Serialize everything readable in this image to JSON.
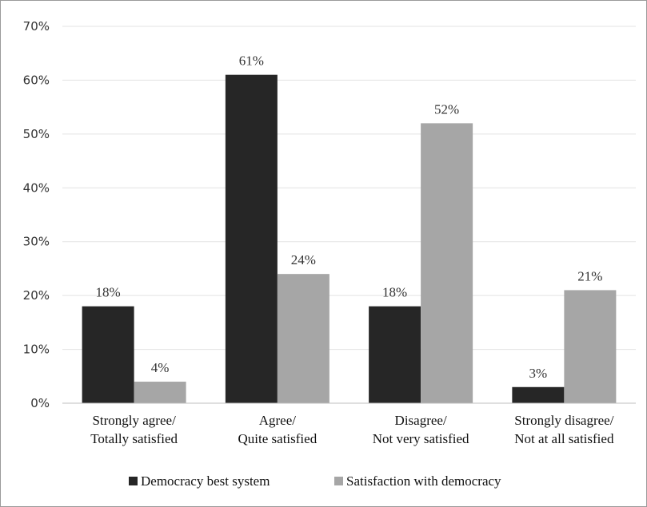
{
  "chart_data": {
    "type": "bar",
    "categories": [
      [
        "Strongly agree/",
        "Totally satisfied"
      ],
      [
        "Agree/",
        "Quite satisfied"
      ],
      [
        "Disagree/",
        "Not very satisfied"
      ],
      [
        "Strongly disagree/",
        "Not at all satisfied"
      ]
    ],
    "series": [
      {
        "name": "Democracy best system",
        "values": [
          18,
          61,
          18,
          3
        ],
        "labels": [
          "18%",
          "61%",
          "18%",
          "3%"
        ],
        "color": "#262626"
      },
      {
        "name": "Satisfaction with democracy",
        "values": [
          4,
          24,
          52,
          21
        ],
        "labels": [
          "4%",
          "24%",
          "52%",
          "21%"
        ],
        "color": "#a6a6a6"
      }
    ],
    "yticks": [
      "0%",
      "10%",
      "20%",
      "30%",
      "40%",
      "50%",
      "60%",
      "70%"
    ],
    "ylim": [
      0,
      70
    ],
    "grid": true,
    "legend": "bottom"
  }
}
